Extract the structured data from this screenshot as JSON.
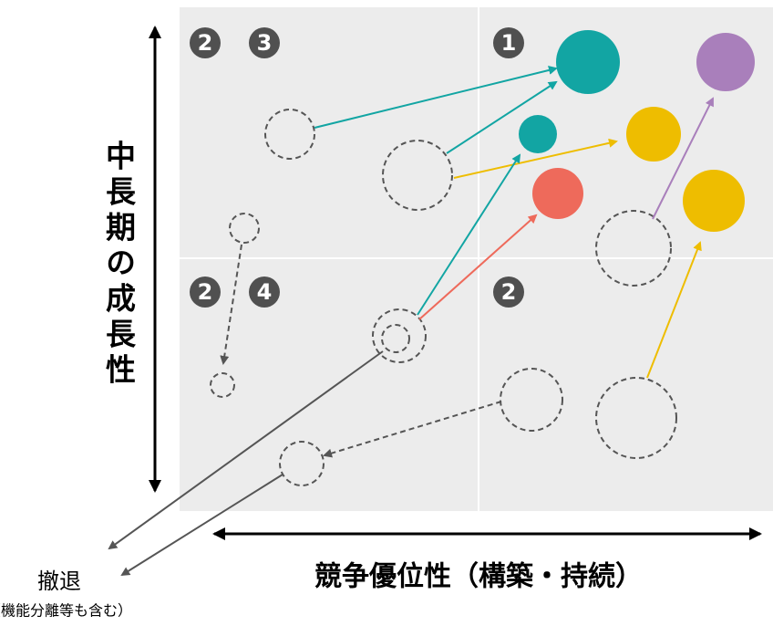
{
  "axes": {
    "y_label": "中長期の成長性",
    "x_label": "競争優位性（構築・持続）"
  },
  "quadrants": [
    {
      "badges": [
        "2",
        "3"
      ]
    },
    {
      "badges": [
        "1"
      ]
    },
    {
      "badges": [
        "2",
        "4"
      ]
    },
    {
      "badges": [
        "2"
      ]
    }
  ],
  "exit": {
    "label": "撤退",
    "note": "（機能分離等も含む）"
  }
}
